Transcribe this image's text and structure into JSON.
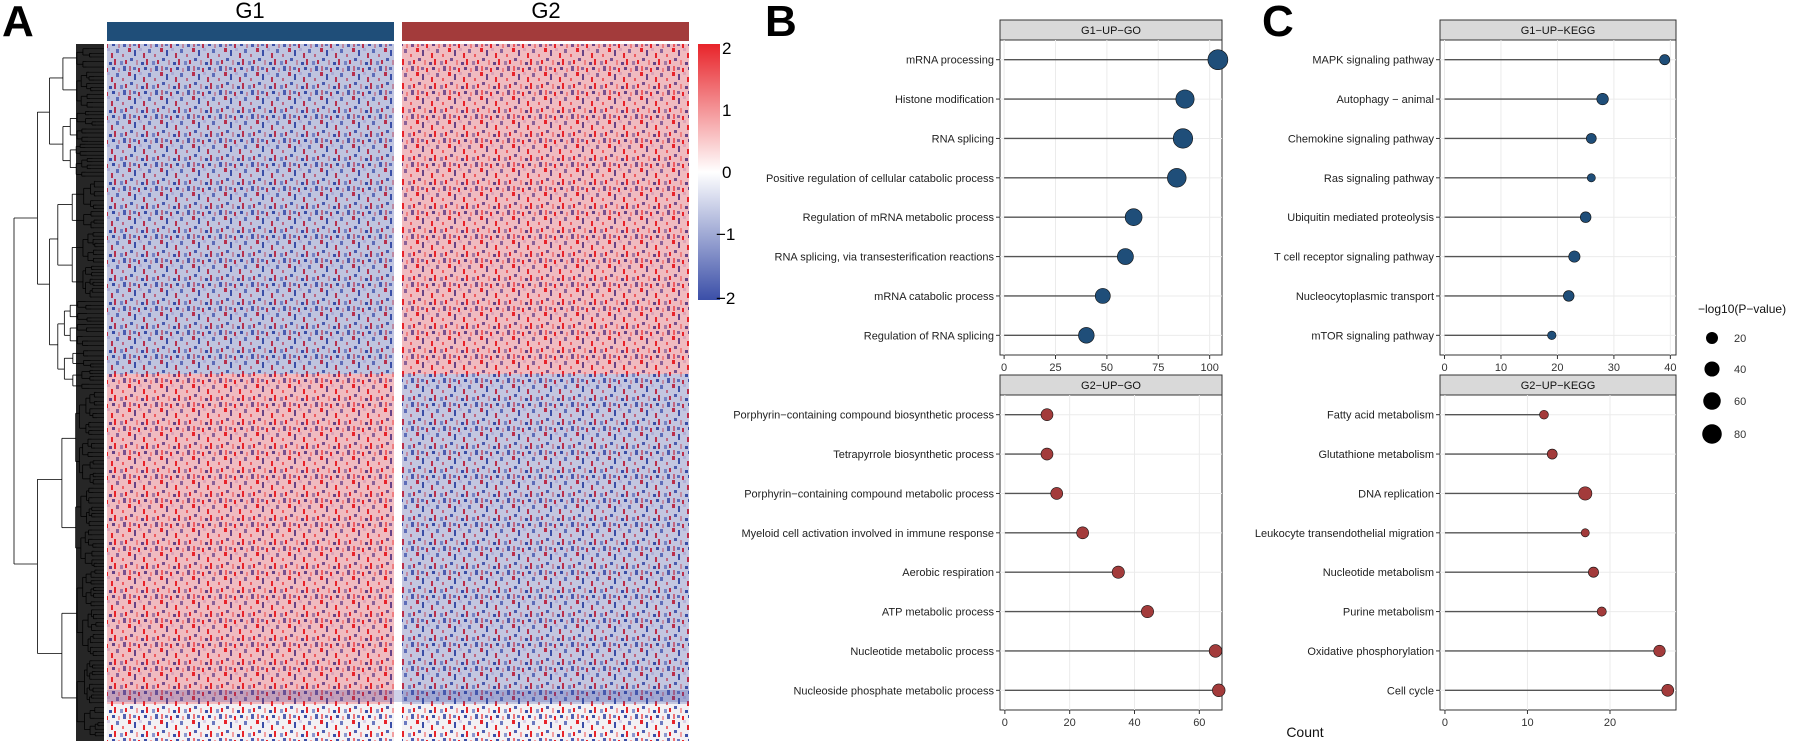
{
  "panel_letters": {
    "a": "A",
    "b": "B",
    "c": "C"
  },
  "heatmap": {
    "group1": "G1",
    "group2": "G2",
    "group1_color": "#1f4e79",
    "group2_color": "#a33b3b",
    "colorbar_ticks": [
      "2",
      "1",
      "0",
      "−1",
      "−2"
    ],
    "colorbar_range": [
      -2,
      2
    ],
    "colors": {
      "high": "#e8242a",
      "mid": "#ffffff",
      "low": "#3b4fa8"
    }
  },
  "size_legend": {
    "title": "−log10(P−value)",
    "entries": [
      "20",
      "40",
      "60",
      "80"
    ]
  },
  "shared_x_title": "Count",
  "chart_data": [
    {
      "type": "scatter",
      "title": "G1−UP−GO",
      "color": "#1f4e79",
      "xlim": [
        -2,
        106
      ],
      "x_ticks": [
        0,
        25,
        50,
        75,
        100
      ],
      "categories": [
        "mRNA processing",
        "Histone modification",
        "RNA splicing",
        "Positive regulation of cellular catabolic process",
        "Regulation of mRNA metabolic process",
        "RNA splicing, via transesterification reactions",
        "mRNA catabolic process",
        "Regulation of RNA splicing"
      ],
      "values": [
        104,
        88,
        87,
        84,
        63,
        59,
        48,
        40
      ],
      "neg_log10_p": [
        85,
        68,
        80,
        72,
        55,
        48,
        40,
        45
      ]
    },
    {
      "type": "scatter",
      "title": "G2−UP−GO",
      "color": "#a33b3b",
      "xlim": [
        -1.5,
        67
      ],
      "x_ticks": [
        0,
        20,
        40,
        60
      ],
      "categories": [
        "Porphyrin−containing compound biosynthetic process",
        "Tetrapyrrole biosynthetic process",
        "Porphyrin−containing compound metabolic process",
        "Myeloid cell activation involved in immune response",
        "Aerobic respiration",
        "ATP metabolic process",
        "Nucleotide metabolic process",
        "Nucleoside phosphate metabolic process"
      ],
      "values": [
        13,
        13,
        16,
        24,
        35,
        44,
        65,
        66
      ],
      "neg_log10_p": [
        20,
        20,
        20,
        20,
        22,
        22,
        24,
        24
      ]
    },
    {
      "type": "scatter",
      "title": "G1−UP−KEGG",
      "color": "#1f4e79",
      "xlim": [
        -0.8,
        41
      ],
      "x_ticks": [
        0,
        10,
        20,
        30,
        40
      ],
      "categories": [
        "MAPK signaling pathway",
        "Autophagy − animal",
        "Chemokine signaling pathway",
        "Ras signaling pathway",
        "Ubiquitin mediated proteolysis",
        "T cell receptor signaling pathway",
        "Nucleocytoplasmic transport",
        "mTOR signaling pathway"
      ],
      "values": [
        39,
        28,
        26,
        26,
        25,
        23,
        22,
        19
      ],
      "neg_log10_p": [
        12,
        18,
        11,
        5,
        14,
        17,
        14,
        6
      ]
    },
    {
      "type": "scatter",
      "title": "G2−UP−KEGG",
      "color": "#a33b3b",
      "xlim": [
        -0.6,
        28
      ],
      "x_ticks": [
        0,
        10,
        20
      ],
      "categories": [
        "Fatty acid metabolism",
        "Glutathione metabolism",
        "DNA replication",
        "Leukocyte transendothelial migration",
        "Nucleotide metabolism",
        "Purine metabolism",
        "Oxidative phosphorylation",
        "Cell cycle"
      ],
      "values": [
        12,
        13,
        17,
        17,
        18,
        19,
        26,
        27
      ],
      "neg_log10_p": [
        7,
        11,
        28,
        5,
        12,
        8,
        18,
        20
      ]
    }
  ]
}
